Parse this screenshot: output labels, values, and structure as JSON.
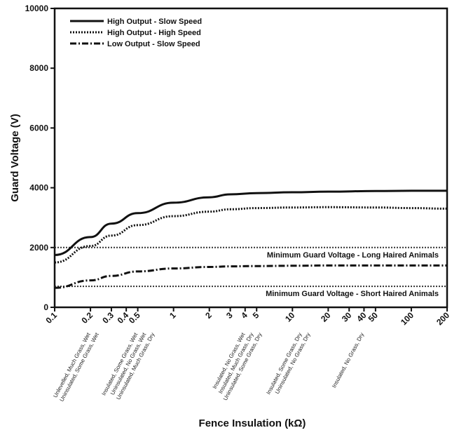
{
  "chart_data": {
    "type": "line",
    "xlabel": "Fence Insulation (kΩ)",
    "ylabel": "Guard Voltage (V)",
    "xscale": "log",
    "xlim": [
      0.1,
      200
    ],
    "ylim": [
      0,
      10000
    ],
    "x_ticks": [
      0.1,
      0.2,
      0.3,
      0.4,
      0.5,
      1,
      2,
      3,
      4,
      5,
      10,
      20,
      30,
      40,
      50,
      100,
      200
    ],
    "x_tick_labels": [
      "0.1",
      "0.2",
      "0.3",
      "0.4",
      "0.5",
      "1",
      "2",
      "3",
      "4",
      "5",
      "10",
      "20",
      "30",
      "40",
      "50",
      "100",
      "200"
    ],
    "y_ticks": [
      0,
      2000,
      4000,
      6000,
      8000,
      10000
    ],
    "y_tick_labels": [
      "0",
      "2000",
      "4000",
      "6000",
      "8000",
      "10000"
    ],
    "grid": false,
    "legend_position": "top-left",
    "series": [
      {
        "name": "High Output - Slow Speed",
        "style": "solid",
        "x": [
          0.1,
          0.2,
          0.3,
          0.5,
          1,
          2,
          3,
          5,
          10,
          20,
          50,
          100,
          200
        ],
        "y": [
          1750,
          2350,
          2800,
          3150,
          3500,
          3680,
          3780,
          3820,
          3850,
          3870,
          3890,
          3900,
          3900
        ]
      },
      {
        "name": "High Output - High Speed",
        "style": "dotted",
        "x": [
          0.1,
          0.2,
          0.3,
          0.5,
          1,
          2,
          3,
          5,
          10,
          20,
          50,
          100,
          200
        ],
        "y": [
          1500,
          2050,
          2400,
          2750,
          3050,
          3200,
          3280,
          3320,
          3340,
          3350,
          3340,
          3320,
          3300
        ]
      },
      {
        "name": "Low Output - Slow Speed",
        "style": "dashdot",
        "x": [
          0.1,
          0.2,
          0.3,
          0.5,
          1,
          2,
          3,
          5,
          10,
          20,
          50,
          100,
          200
        ],
        "y": [
          650,
          900,
          1050,
          1200,
          1300,
          1350,
          1370,
          1380,
          1390,
          1400,
          1400,
          1400,
          1400
        ]
      }
    ],
    "reference_lines": [
      {
        "label": "Minimum Guard Voltage - Long Haired Animals",
        "y": 2000
      },
      {
        "label": "Minimum Guard Voltage - Short Haired Animals",
        "y": 700
      }
    ],
    "condition_labels": [
      {
        "x": 0.2,
        "lines": [
          "Unlevelled, Much Grass, Wet",
          "Uninsulated, Some Grass, Wet"
        ]
      },
      {
        "x": 0.5,
        "lines": [
          "Insulated, Some Grass, Wet",
          "Uninsulated, No Grass, Wet",
          "Uninsulated, Much Grass, Dry"
        ]
      },
      {
        "x": 4,
        "lines": [
          "Insulated, No Grass, Wet",
          "Insulated, Much Grass, Dry",
          "Uninsulated, Some Grass, Dry"
        ]
      },
      {
        "x": 12,
        "lines": [
          "Insulated, Some Grass, Dry",
          "Uninsulated, No Grass, Dry"
        ]
      },
      {
        "x": 40,
        "lines": [
          "Insulated, No Grass, Dry"
        ]
      }
    ]
  }
}
